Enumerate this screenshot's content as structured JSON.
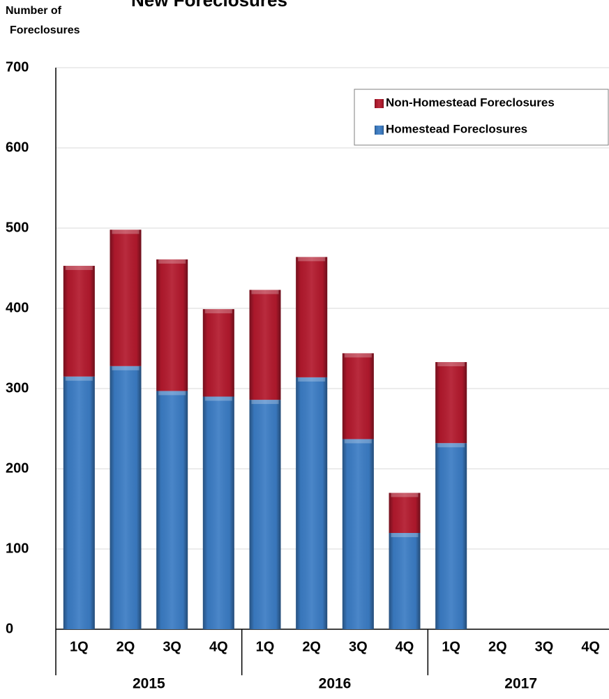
{
  "chart_data": {
    "type": "stacked_bar",
    "title": "New Foreclosures",
    "y_label": [
      "Number of",
      "Foreclosures"
    ],
    "categories": [
      "1Q",
      "2Q",
      "3Q",
      "4Q",
      "1Q",
      "2Q",
      "3Q",
      "4Q",
      "1Q",
      "2Q",
      "3Q",
      "4Q"
    ],
    "years": [
      "2015",
      "2016",
      "2017"
    ],
    "series": [
      {
        "name": "Homestead Foreclosures",
        "color": "#3b7cc4",
        "values": [
          315,
          328,
          297,
          290,
          286,
          314,
          237,
          120,
          232,
          null,
          null,
          null
        ]
      },
      {
        "name": "Non-Homestead Foreclosures",
        "color": "#b3192d",
        "values": [
          138,
          170,
          164,
          109,
          137,
          150,
          107,
          50,
          101,
          null,
          null,
          null
        ]
      }
    ],
    "ylim": [
      0,
      700
    ],
    "yticks": [
      0,
      100,
      200,
      300,
      400,
      500,
      600,
      700
    ],
    "grid": true,
    "legend": "top-right"
  }
}
